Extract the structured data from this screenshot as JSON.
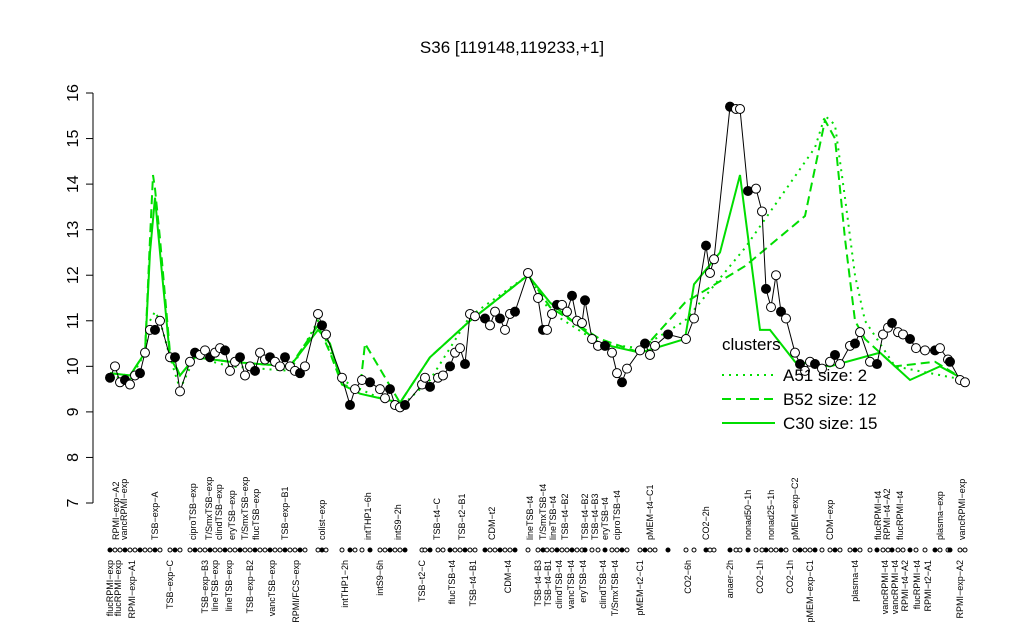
{
  "chart_data": {
    "type": "line",
    "title": "S36 [119148,119233,+1]",
    "xlim": [
      0,
      860
    ],
    "ylim": [
      7,
      16
    ],
    "yticks": [
      7,
      8,
      9,
      10,
      11,
      12,
      13,
      14,
      15,
      16
    ],
    "legend_title": "clusters",
    "legend_color": "#00dd00",
    "point_color": "#000000",
    "points": {
      "x": [
        5,
        10,
        15,
        20,
        25,
        30,
        35,
        40,
        45,
        50,
        55,
        65,
        70,
        75,
        85,
        90,
        95,
        100,
        105,
        110,
        115,
        120,
        125,
        130,
        135,
        140,
        145,
        150,
        155,
        160,
        165,
        170,
        175,
        180,
        185,
        190,
        195,
        200,
        213,
        217,
        221,
        237,
        245,
        250,
        257,
        265,
        275,
        280,
        285,
        290,
        295,
        300,
        317,
        320,
        325,
        333,
        338,
        345,
        350,
        355,
        360,
        365,
        370,
        380,
        385,
        390,
        395,
        400,
        405,
        410,
        423,
        433,
        438,
        442,
        447,
        452,
        457,
        462,
        467,
        472,
        477,
        480,
        487,
        493,
        500,
        507,
        512,
        517,
        522,
        535,
        540,
        545,
        550,
        563,
        581,
        589,
        601,
        605,
        609,
        625,
        631,
        635,
        643,
        651,
        657,
        661,
        666,
        671,
        676,
        681,
        690,
        695,
        700,
        705,
        710,
        717,
        725,
        730,
        735,
        745,
        750,
        755,
        765,
        772,
        778,
        783,
        787,
        793,
        798,
        805,
        811,
        820,
        830,
        835,
        843,
        845,
        855,
        860
      ],
      "values": [
        9.75,
        10.0,
        9.65,
        9.7,
        9.6,
        9.8,
        9.85,
        10.3,
        10.8,
        10.8,
        11.0,
        10.2,
        10.2,
        9.45,
        10.1,
        10.3,
        10.25,
        10.35,
        10.2,
        10.3,
        10.4,
        10.35,
        9.9,
        10.1,
        10.2,
        9.8,
        10.0,
        9.9,
        10.3,
        10.15,
        10.2,
        10.1,
        10.0,
        10.2,
        10.0,
        9.9,
        9.85,
        10.0,
        11.15,
        10.9,
        10.7,
        9.75,
        9.15,
        9.5,
        9.7,
        9.65,
        9.5,
        9.3,
        9.5,
        9.15,
        9.1,
        9.15,
        9.6,
        9.75,
        9.55,
        9.75,
        9.8,
        10.0,
        10.3,
        10.4,
        10.05,
        11.15,
        11.1,
        11.05,
        10.9,
        11.2,
        11.05,
        10.8,
        11.15,
        11.2,
        12.05,
        11.5,
        10.8,
        10.8,
        11.15,
        11.35,
        11.35,
        11.2,
        11.55,
        11.0,
        10.95,
        11.45,
        10.6,
        10.45,
        10.45,
        10.3,
        9.85,
        9.65,
        9.95,
        10.35,
        10.5,
        10.25,
        10.45,
        10.7,
        10.6,
        11.05,
        12.65,
        12.05,
        12.35,
        15.7,
        15.65,
        15.65,
        13.85,
        13.9,
        13.4,
        11.7,
        11.3,
        12.0,
        11.2,
        11.05,
        10.3,
        10.05,
        9.9,
        10.1,
        10.05,
        9.95,
        10.1,
        10.25,
        10.05,
        10.45,
        10.5,
        10.75,
        10.1,
        10.05,
        10.7,
        10.85,
        10.95,
        10.75,
        10.7,
        10.6,
        10.4,
        10.35,
        10.35,
        10.4,
        10.15,
        10.1,
        9.7,
        9.65
      ]
    },
    "series": [
      {
        "name": "A51 size: 2",
        "color": "#00dd00",
        "dash": "dotted",
        "x": [
          5,
          25,
          40,
          45,
          50,
          55,
          65,
          75,
          90,
          125,
          185,
          213,
          237,
          255,
          295,
          325,
          365,
          423,
          445,
          495,
          535,
          580,
          640,
          710,
          720,
          730,
          740,
          750,
          760,
          790,
          860
        ],
        "values": [
          9.8,
          9.7,
          10.3,
          11.0,
          11.2,
          11.0,
          10.2,
          9.5,
          10.2,
          10.0,
          9.9,
          11.0,
          9.7,
          9.5,
          9.1,
          9.7,
          11.1,
          12.0,
          11.2,
          10.5,
          10.4,
          11.0,
          12.6,
          14.8,
          15.5,
          15.3,
          13.7,
          12.0,
          11.0,
          10.0,
          9.7
        ]
      },
      {
        "name": "B52 size: 12",
        "color": "#00dd00",
        "dash": "dashed",
        "x": [
          5,
          25,
          40,
          45,
          48,
          50,
          55,
          65,
          75,
          90,
          125,
          185,
          213,
          225,
          237,
          255,
          260,
          295,
          325,
          365,
          423,
          445,
          495,
          535,
          580,
          640,
          700,
          720,
          730,
          740,
          750,
          760,
          790,
          830,
          860
        ],
        "values": [
          9.85,
          9.8,
          10.3,
          12.8,
          14.2,
          13.9,
          12.8,
          10.3,
          9.8,
          10.2,
          10.1,
          10.0,
          10.9,
          10.3,
          9.6,
          9.5,
          10.5,
          9.2,
          10.2,
          11.0,
          12.0,
          11.3,
          10.6,
          10.3,
          11.4,
          12.2,
          13.3,
          15.4,
          15.0,
          12.8,
          11.0,
          10.6,
          10.0,
          10.1,
          9.7
        ]
      },
      {
        "name": "C30 size: 15",
        "color": "#00dd00",
        "dash": "solid",
        "x": [
          5,
          25,
          40,
          45,
          50,
          55,
          65,
          75,
          90,
          125,
          185,
          213,
          225,
          237,
          255,
          295,
          325,
          365,
          423,
          445,
          495,
          535,
          580,
          589,
          615,
          635,
          645,
          655,
          665,
          690,
          725,
          775,
          805,
          835,
          860
        ],
        "values": [
          9.85,
          9.8,
          10.3,
          12.5,
          13.7,
          12.5,
          10.2,
          9.8,
          10.2,
          10.1,
          10.0,
          10.8,
          10.5,
          9.6,
          9.4,
          9.2,
          10.2,
          11.0,
          12.0,
          11.4,
          10.5,
          10.3,
          10.6,
          11.8,
          12.5,
          14.2,
          12.5,
          10.8,
          10.8,
          10.1,
          10.0,
          10.3,
          9.7,
          10.0,
          9.7
        ]
      }
    ],
    "top_labels": [
      {
        "value": 11,
        "label": "RPMI−exp−A2"
      },
      {
        "value": 19,
        "label": "vancRPMI−exp"
      },
      {
        "value": 50,
        "label": "TSB−exp−A"
      },
      {
        "value": 88,
        "label": "ciproTSB−exp"
      },
      {
        "value": 104,
        "label": "T/SmxTSB−exp"
      },
      {
        "value": 114,
        "label": "clindTSB−exp"
      },
      {
        "value": 127,
        "label": "eryTSB−exp"
      },
      {
        "value": 140,
        "label": "T/SmxTSB−exp"
      },
      {
        "value": 151,
        "label": "flucTSB−exp"
      },
      {
        "value": 180,
        "label": "TSB−exp−B1"
      },
      {
        "value": 217,
        "label": "colist−exp"
      },
      {
        "value": 263,
        "label": "intTHP1−6h"
      },
      {
        "value": 293,
        "label": "intS9−2h"
      },
      {
        "value": 332,
        "label": "TSB−t4−C"
      },
      {
        "value": 357,
        "label": "TSB−t2−B1"
      },
      {
        "value": 387,
        "label": "CDM−t2"
      },
      {
        "value": 425,
        "label": "lineTSB−t4"
      },
      {
        "value": 438,
        "label": "T/SmxTSB−t4"
      },
      {
        "value": 448,
        "label": "lineTSB−t4"
      },
      {
        "value": 460,
        "label": "TSB−t4−B2"
      },
      {
        "value": 480,
        "label": "TSB−t4−B2"
      },
      {
        "value": 490,
        "label": "TSB−t4−B3"
      },
      {
        "value": 500,
        "label": "eryTSB−t4"
      },
      {
        "value": 512,
        "label": "ciproTSB−t4"
      },
      {
        "value": 545,
        "label": "pMEM−t4−C1"
      },
      {
        "value": 601,
        "label": "CO2−2h"
      },
      {
        "value": 643,
        "label": "nonad50−1h"
      },
      {
        "value": 666,
        "label": "nonad25−1h"
      },
      {
        "value": 690,
        "label": "pMEM−exp−C2"
      },
      {
        "value": 725,
        "label": "CDM−exp"
      },
      {
        "value": 773,
        "label": "flucRPMI−t4"
      },
      {
        "value": 782,
        "label": "RPMI−t4−A2"
      },
      {
        "value": 795,
        "label": "flucRPMI−t4"
      },
      {
        "value": 835,
        "label": "plasma−exp"
      },
      {
        "value": 857,
        "label": "vancRPMI−exp"
      }
    ],
    "bottom_labels": [
      {
        "value": 5,
        "label": "flucRPMI−exp"
      },
      {
        "value": 13,
        "label": "flucRPMI−exp"
      },
      {
        "value": 27,
        "label": "RPMI−exp−A1"
      },
      {
        "value": 65,
        "label": "TSB−exp−C"
      },
      {
        "value": 100,
        "label": "TSB−exp−B3"
      },
      {
        "value": 110,
        "label": "lineTSB−exp"
      },
      {
        "value": 124,
        "label": "lineTSB−exp"
      },
      {
        "value": 145,
        "label": "TSB−exp−B2"
      },
      {
        "value": 167,
        "label": "vancTSB−exp"
      },
      {
        "value": 191,
        "label": "RPMI/FCS−exp"
      },
      {
        "value": 240,
        "label": "intTHP1−2h"
      },
      {
        "value": 275,
        "label": "intS9−6h"
      },
      {
        "value": 317,
        "label": "TSB−t2−C"
      },
      {
        "value": 347,
        "label": "flucTSB−t4"
      },
      {
        "value": 368,
        "label": "TSB−t4−B1"
      },
      {
        "value": 403,
        "label": "CDM−t4"
      },
      {
        "value": 433,
        "label": "TSB−t4−B3"
      },
      {
        "value": 443,
        "label": "TSB−t4−B1"
      },
      {
        "value": 454,
        "label": "clindTSB−t4"
      },
      {
        "value": 466,
        "label": "vancTSB−t4"
      },
      {
        "value": 478,
        "label": "eryTSB−t4"
      },
      {
        "value": 498,
        "label": "clindTSB−t4"
      },
      {
        "value": 510,
        "label": "T/SmxTSB−t4"
      },
      {
        "value": 535,
        "label": "pMEM−t2−C1"
      },
      {
        "value": 583,
        "label": "CO2−6h"
      },
      {
        "value": 625,
        "label": "anaer−2h"
      },
      {
        "value": 655,
        "label": "CO2−1h"
      },
      {
        "value": 685,
        "label": "CO2−1h"
      },
      {
        "value": 705,
        "label": "pMEM−exp−C1"
      },
      {
        "value": 750,
        "label": "plasma−t4"
      },
      {
        "value": 780,
        "label": "vancRPMI−t4"
      },
      {
        "value": 790,
        "label": "vancRPMI−t4"
      },
      {
        "value": 800,
        "label": "RPMI−t4−A2"
      },
      {
        "value": 812,
        "label": "flucRPMI−t4"
      },
      {
        "value": 823,
        "label": "RPMI−t2−A1"
      },
      {
        "value": 855,
        "label": "RPMI−exp−A2"
      }
    ]
  }
}
